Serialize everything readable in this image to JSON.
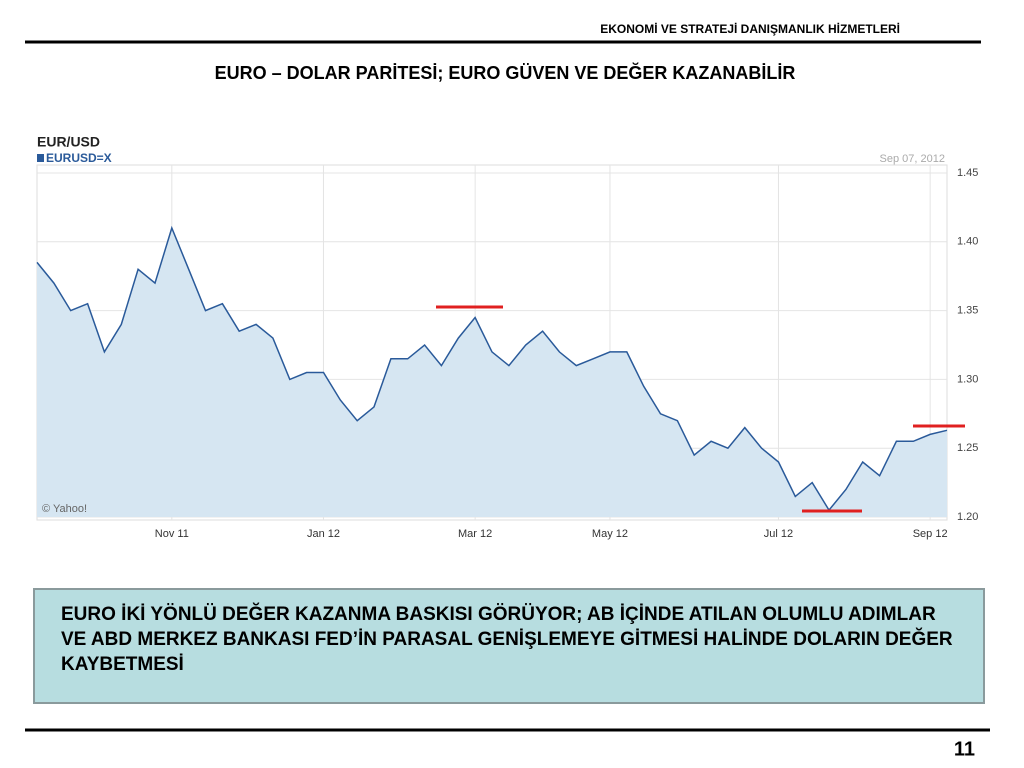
{
  "header": {
    "company": "EKONOMİ VE STRATEJİ DANIŞMANLIK HİZMETLERİ",
    "title": "EURO – DOLAR PARİTESİ;  EURO GÜVEN VE DEĞER KAZANABİLİR"
  },
  "chart_data": {
    "type": "area",
    "title": "EUR/USD",
    "date": "Sep 07, 2012",
    "source": "© Yahoo!",
    "categories": [
      null,
      null,
      null,
      null,
      null,
      null,
      null,
      null,
      "Nov 11",
      null,
      null,
      null,
      null,
      null,
      null,
      null,
      null,
      "Jan 12",
      null,
      null,
      null,
      null,
      null,
      null,
      null,
      null,
      "Mar 12",
      null,
      null,
      null,
      null,
      null,
      null,
      null,
      "May 12",
      null,
      null,
      null,
      null,
      null,
      null,
      null,
      null,
      null,
      "Jul 12",
      null,
      null,
      null,
      null,
      null,
      null,
      null,
      null,
      "Sep 12",
      null
    ],
    "series": [
      {
        "name": "EURUSD=X",
        "color": "#2a5a9a",
        "values": [
          1.385,
          1.37,
          1.35,
          1.355,
          1.32,
          1.34,
          1.38,
          1.37,
          1.41,
          1.38,
          1.35,
          1.355,
          1.335,
          1.34,
          1.33,
          1.3,
          1.305,
          1.305,
          1.285,
          1.27,
          1.28,
          1.315,
          1.315,
          1.325,
          1.31,
          1.33,
          1.345,
          1.32,
          1.31,
          1.325,
          1.335,
          1.32,
          1.31,
          1.315,
          1.32,
          1.32,
          1.295,
          1.275,
          1.27,
          1.245,
          1.255,
          1.25,
          1.265,
          1.25,
          1.24,
          1.215,
          1.225,
          1.205,
          1.22,
          1.24,
          1.23,
          1.255,
          1.255,
          1.26,
          1.263
        ]
      }
    ],
    "ylim": [
      1.2,
      1.45
    ],
    "yticks": [
      {
        "value": 1.2,
        "label": "1.20"
      },
      1.25,
      {
        "value": 1.3,
        "label": "1.30"
      },
      1.35,
      {
        "value": 1.4,
        "label": "1.40"
      },
      1.45
    ],
    "grid": true
  },
  "text_box": "EURO İKİ YÖNLÜ DEĞER KAZANMA BASKISI GÖRÜYOR; AB İÇİNDE ATILAN OLUMLU ADIMLAR VE ABD MERKEZ BANKASI FED’İN PARASAL GENİŞLEMEYE GİTMESİ HALİNDE   DOLARIN DEĞER KAYBETMESİ",
  "page_number": "11"
}
